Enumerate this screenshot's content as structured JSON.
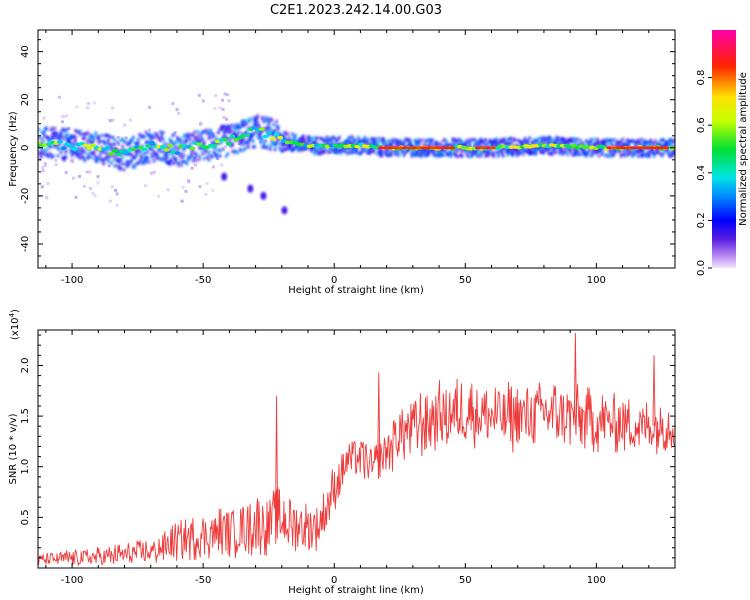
{
  "title": "C2E1.2023.242.14.00.G03",
  "colors": {
    "snr_line": "#ee3b3b",
    "frame": "#000000"
  },
  "chart_data": [
    {
      "type": "heatmap",
      "name": "spectrogram",
      "xlabel": "Height of straight line (km)",
      "ylabel": "Frequency (Hz)",
      "xlim": [
        -113,
        130
      ],
      "ylim": [
        -50,
        49
      ],
      "xticks": [
        -100,
        -50,
        0,
        50,
        100
      ],
      "xtick_labels": [
        "-100",
        "-50",
        "0",
        "50",
        "100"
      ],
      "yticks": [
        -40,
        -20,
        0,
        20,
        40
      ],
      "ytick_labels": [
        "-40",
        "-20",
        "0",
        "20",
        "40"
      ],
      "ridge": [
        {
          "x": -113,
          "f": 2
        },
        {
          "x": -100,
          "f": 1
        },
        {
          "x": -90,
          "f": 0
        },
        {
          "x": -80,
          "f": -3
        },
        {
          "x": -70,
          "f": 1
        },
        {
          "x": -60,
          "f": -1
        },
        {
          "x": -50,
          "f": 1
        },
        {
          "x": -40,
          "f": 3
        },
        {
          "x": -30,
          "f": 7
        },
        {
          "x": -25,
          "f": 6
        },
        {
          "x": -20,
          "f": 3
        },
        {
          "x": -10,
          "f": 1
        },
        {
          "x": 0,
          "f": 1
        },
        {
          "x": 10,
          "f": 1
        },
        {
          "x": 20,
          "f": 0
        },
        {
          "x": 40,
          "f": 0
        },
        {
          "x": 60,
          "f": 0
        },
        {
          "x": 80,
          "f": 1
        },
        {
          "x": 100,
          "f": 0
        },
        {
          "x": 130,
          "f": 0
        }
      ],
      "peak_segments": [
        {
          "x0": 18,
          "x1": 45,
          "f": 0
        },
        {
          "x0": 55,
          "x1": 62,
          "f": 0
        },
        {
          "x0": 105,
          "x1": 128,
          "f": 0
        }
      ],
      "outlier_trail": [
        {
          "x": -42,
          "f": -12
        },
        {
          "x": -32,
          "f": -17
        },
        {
          "x": -27,
          "f": -20
        },
        {
          "x": -19,
          "f": -26
        }
      ]
    },
    {
      "type": "colorbar",
      "name": "amplitude-colorbar",
      "label": "Normalized spectral amplitude",
      "range": [
        0,
        1
      ],
      "ticks": [
        0.0,
        0.2,
        0.4,
        0.6,
        0.8
      ],
      "tick_labels": [
        "0.0",
        "0.2",
        "0.4",
        "0.6",
        "0.8"
      ],
      "stops": [
        {
          "v": 0.0,
          "color": "#f3e6ff"
        },
        {
          "v": 0.05,
          "color": "#b98af0"
        },
        {
          "v": 0.12,
          "color": "#5a1ee0"
        },
        {
          "v": 0.2,
          "color": "#0000ff"
        },
        {
          "v": 0.3,
          "color": "#0088ff"
        },
        {
          "v": 0.38,
          "color": "#00e5e5"
        },
        {
          "v": 0.5,
          "color": "#00e030"
        },
        {
          "v": 0.62,
          "color": "#c8ff00"
        },
        {
          "v": 0.72,
          "color": "#ffe000"
        },
        {
          "v": 0.85,
          "color": "#ff2200"
        },
        {
          "v": 1.0,
          "color": "#ff00aa"
        }
      ]
    },
    {
      "type": "line",
      "name": "snr",
      "xlabel": "Height of straight line (km)",
      "ylabel": "SNR (10 * v/v)",
      "yscale_label": "(x10",
      "yscale_exponent": "4",
      "xlim": [
        -113,
        130
      ],
      "ylim": [
        0,
        23500
      ],
      "xticks": [
        -100,
        -50,
        0,
        50,
        100
      ],
      "xtick_labels": [
        "-100",
        "-50",
        "0",
        "50",
        "100"
      ],
      "yticks": [
        5000,
        10000,
        15000,
        20000
      ],
      "ytick_labels": [
        "0.5",
        "1.0",
        "1.5",
        "2.0"
      ],
      "series": [
        {
          "x": [
            -113,
            -100,
            -90,
            -80,
            -70,
            -60,
            -50,
            -40,
            -30,
            -20,
            -10,
            -5,
            0,
            5,
            10,
            15,
            20,
            25,
            30,
            40,
            50,
            60,
            70,
            80,
            90,
            100,
            110,
            120,
            130
          ],
          "y": [
            800,
            1000,
            1100,
            1300,
            1600,
            2600,
            3200,
            3700,
            4300,
            4700,
            3900,
            4500,
            8000,
            10800,
            11000,
            9800,
            11500,
            13300,
            14000,
            15000,
            15500,
            15000,
            14800,
            15500,
            15000,
            14500,
            14200,
            14000,
            14200
          ],
          "spread": [
            600,
            900,
            1000,
            1200,
            1400,
            2000,
            2400,
            2800,
            3200,
            3400,
            2800,
            2500,
            2500,
            2300,
            2300,
            2300,
            2700,
            3200,
            3600,
            3600,
            3600,
            3600,
            3600,
            3500,
            3400,
            3200,
            3000,
            2800,
            2800
          ],
          "peaks": [
            {
              "x": -22,
              "y": 17000
            },
            {
              "x": 17,
              "y": 19300
            },
            {
              "x": 92,
              "y": 23200
            },
            {
              "x": 122,
              "y": 21000
            }
          ]
        }
      ]
    }
  ]
}
